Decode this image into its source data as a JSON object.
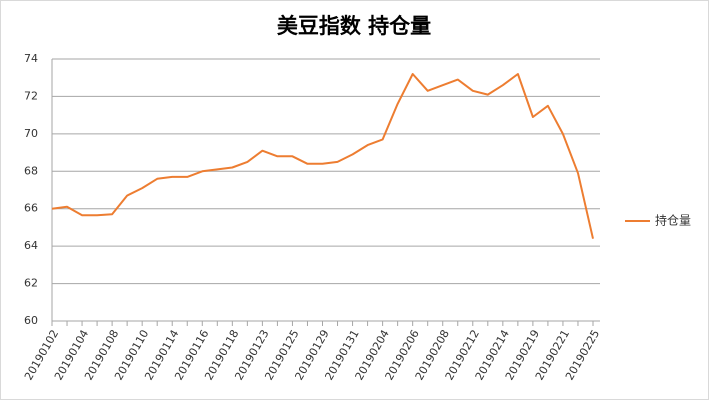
{
  "chart_data": {
    "type": "line",
    "title": "美豆指数 持仓量",
    "categories": [
      "20190102",
      null,
      "20190104",
      null,
      "20190108",
      null,
      "20190110",
      null,
      "20190114",
      null,
      "20190116",
      null,
      "20190118",
      null,
      "20190123",
      null,
      "20190125",
      null,
      "20190129",
      null,
      "20190131",
      null,
      "20190204",
      null,
      "20190206",
      null,
      "20190208",
      null,
      "20190212",
      null,
      "20190214",
      null,
      "20190219",
      null,
      "20190221",
      null,
      "20190225"
    ],
    "series": [
      {
        "name": "持仓量",
        "color": "#ed7d31",
        "values": [
          66.0,
          66.1,
          65.65,
          65.65,
          65.7,
          66.7,
          67.1,
          67.6,
          67.7,
          67.7,
          68.0,
          68.1,
          68.2,
          68.5,
          69.1,
          68.8,
          68.8,
          68.4,
          68.4,
          68.5,
          68.9,
          69.4,
          69.7,
          71.6,
          73.2,
          72.3,
          72.6,
          72.9,
          72.3,
          72.1,
          72.6,
          73.2,
          70.9,
          71.5,
          70.0,
          67.9,
          64.4
        ]
      }
    ],
    "ylim": [
      60,
      74
    ],
    "yticks": [
      60,
      62,
      64,
      66,
      68,
      70,
      72,
      74
    ],
    "grid": true,
    "legend": "right"
  }
}
